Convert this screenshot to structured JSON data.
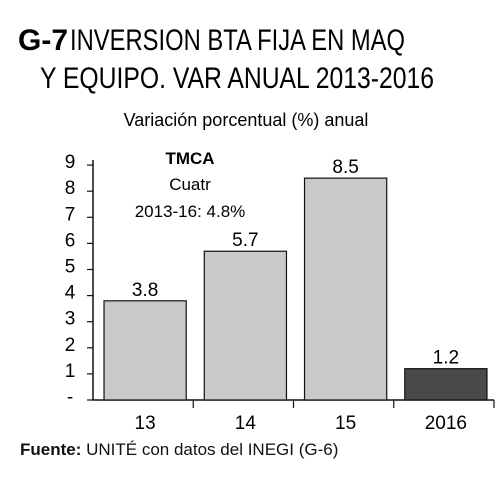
{
  "chart_data": {
    "type": "bar",
    "title_code": "G-7",
    "title_line1": "INVERSION BTA FIJA EN MAQ",
    "title_line2": "Y EQUIPO. VAR ANUAL 2013-2016",
    "subtitle": "Variación porcentual (%) anual",
    "categories": [
      "13",
      "14",
      "15",
      "2016"
    ],
    "values": [
      3.8,
      5.7,
      8.5,
      1.2
    ],
    "value_labels": [
      "3.8",
      "5.7",
      "8.5",
      "1.2"
    ],
    "ylim": [
      0,
      9
    ],
    "y_ticks": [
      "-",
      "1",
      "2",
      "3",
      "4",
      "5",
      "6",
      "7",
      "8",
      "9"
    ],
    "grid": false,
    "bar_colors": [
      "#c9c9c9",
      "#c9c9c9",
      "#c9c9c9",
      "#4a4a4a"
    ],
    "annotation": {
      "heading": "TMCA",
      "line1": "Cuatr",
      "line2": "2013-16:  4.8%"
    }
  },
  "source": {
    "label": "Fuente:",
    "text": " UNITÉ con datos del INEGI (G-6)"
  }
}
